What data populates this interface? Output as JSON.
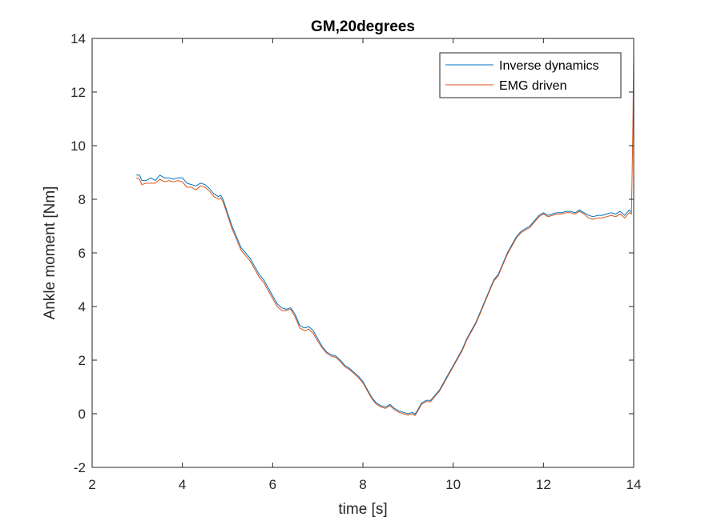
{
  "chart_data": {
    "type": "line",
    "title": "GM,20degrees",
    "xlabel": "time  [s]",
    "ylabel": "Ankle moment [Nm]",
    "xlim": [
      2,
      14
    ],
    "ylim": [
      -2,
      14
    ],
    "xticks": [
      2,
      4,
      6,
      8,
      10,
      12,
      14
    ],
    "yticks": [
      -2,
      0,
      2,
      4,
      6,
      8,
      10,
      12,
      14
    ],
    "grid": false,
    "legend_position": "top-right",
    "series": [
      {
        "name": "Inverse dynamics",
        "color": "#0072BD",
        "x": [
          2.98,
          3.05,
          3.1,
          3.2,
          3.3,
          3.4,
          3.5,
          3.6,
          3.7,
          3.8,
          3.9,
          4.0,
          4.1,
          4.2,
          4.3,
          4.4,
          4.5,
          4.6,
          4.7,
          4.8,
          4.85,
          4.9,
          5.0,
          5.1,
          5.2,
          5.3,
          5.4,
          5.5,
          5.6,
          5.7,
          5.8,
          5.9,
          6.0,
          6.1,
          6.2,
          6.3,
          6.4,
          6.5,
          6.6,
          6.7,
          6.8,
          6.9,
          7.0,
          7.1,
          7.2,
          7.3,
          7.4,
          7.5,
          7.6,
          7.7,
          7.8,
          7.9,
          8.0,
          8.1,
          8.2,
          8.3,
          8.4,
          8.5,
          8.6,
          8.7,
          8.8,
          8.9,
          9.0,
          9.1,
          9.15,
          9.2,
          9.3,
          9.4,
          9.5,
          9.6,
          9.7,
          9.8,
          9.9,
          10.0,
          10.1,
          10.2,
          10.3,
          10.4,
          10.5,
          10.6,
          10.7,
          10.8,
          10.9,
          11.0,
          11.1,
          11.2,
          11.3,
          11.4,
          11.5,
          11.6,
          11.7,
          11.8,
          11.9,
          12.0,
          12.1,
          12.2,
          12.3,
          12.4,
          12.5,
          12.6,
          12.7,
          12.8,
          12.9,
          13.0,
          13.1,
          13.2,
          13.3,
          13.4,
          13.5,
          13.6,
          13.7,
          13.8,
          13.9,
          13.95
        ],
        "y": [
          8.9,
          8.9,
          8.7,
          8.7,
          8.8,
          8.7,
          8.9,
          8.8,
          8.8,
          8.75,
          8.8,
          8.8,
          8.6,
          8.55,
          8.5,
          8.6,
          8.55,
          8.4,
          8.2,
          8.1,
          8.15,
          8.0,
          7.5,
          7.0,
          6.6,
          6.2,
          6.0,
          5.8,
          5.5,
          5.2,
          5.0,
          4.7,
          4.4,
          4.1,
          3.95,
          3.9,
          3.95,
          3.7,
          3.3,
          3.2,
          3.25,
          3.1,
          2.8,
          2.5,
          2.3,
          2.2,
          2.15,
          2.0,
          1.8,
          1.7,
          1.55,
          1.4,
          1.2,
          0.9,
          0.6,
          0.4,
          0.3,
          0.25,
          0.35,
          0.2,
          0.1,
          0.05,
          0.0,
          0.05,
          -0.02,
          0.1,
          0.4,
          0.5,
          0.5,
          0.7,
          0.9,
          1.2,
          1.5,
          1.8,
          2.1,
          2.4,
          2.8,
          3.1,
          3.4,
          3.8,
          4.2,
          4.6,
          5.0,
          5.2,
          5.6,
          6.0,
          6.3,
          6.6,
          6.8,
          6.9,
          7.0,
          7.2,
          7.4,
          7.5,
          7.4,
          7.45,
          7.5,
          7.5,
          7.55,
          7.55,
          7.5,
          7.6,
          7.5,
          7.4,
          7.35,
          7.4,
          7.4,
          7.45,
          7.5,
          7.45,
          7.55,
          7.4,
          7.6,
          7.5
        ]
      },
      {
        "name": "EMG driven",
        "color": "#D95319",
        "x": [
          2.98,
          3.05,
          3.1,
          3.2,
          3.3,
          3.4,
          3.5,
          3.6,
          3.7,
          3.8,
          3.9,
          4.0,
          4.1,
          4.2,
          4.3,
          4.4,
          4.5,
          4.6,
          4.7,
          4.8,
          4.85,
          4.9,
          5.0,
          5.1,
          5.2,
          5.3,
          5.4,
          5.5,
          5.6,
          5.7,
          5.8,
          5.9,
          6.0,
          6.1,
          6.2,
          6.3,
          6.4,
          6.5,
          6.6,
          6.7,
          6.8,
          6.9,
          7.0,
          7.1,
          7.2,
          7.3,
          7.4,
          7.5,
          7.6,
          7.7,
          7.8,
          7.9,
          8.0,
          8.1,
          8.2,
          8.3,
          8.4,
          8.5,
          8.6,
          8.7,
          8.8,
          8.9,
          9.0,
          9.1,
          9.15,
          9.2,
          9.3,
          9.4,
          9.5,
          9.6,
          9.7,
          9.8,
          9.9,
          10.0,
          10.1,
          10.2,
          10.3,
          10.4,
          10.5,
          10.6,
          10.7,
          10.8,
          10.9,
          11.0,
          11.1,
          11.2,
          11.3,
          11.4,
          11.5,
          11.6,
          11.7,
          11.8,
          11.9,
          12.0,
          12.1,
          12.2,
          12.3,
          12.4,
          12.5,
          12.6,
          12.7,
          12.8,
          12.9,
          13.0,
          13.1,
          13.2,
          13.3,
          13.4,
          13.5,
          13.6,
          13.7,
          13.8,
          13.9,
          13.95,
          13.98,
          14.0
        ],
        "y": [
          8.8,
          8.75,
          8.55,
          8.6,
          8.6,
          8.6,
          8.75,
          8.65,
          8.7,
          8.65,
          8.7,
          8.65,
          8.45,
          8.45,
          8.35,
          8.5,
          8.45,
          8.3,
          8.1,
          8.0,
          8.05,
          7.9,
          7.4,
          6.9,
          6.5,
          6.1,
          5.9,
          5.7,
          5.4,
          5.1,
          4.9,
          4.6,
          4.3,
          4.0,
          3.85,
          3.85,
          3.9,
          3.6,
          3.2,
          3.1,
          3.15,
          3.0,
          2.7,
          2.45,
          2.25,
          2.15,
          2.1,
          1.95,
          1.75,
          1.65,
          1.5,
          1.35,
          1.15,
          0.85,
          0.55,
          0.35,
          0.25,
          0.2,
          0.3,
          0.15,
          0.05,
          0.0,
          -0.05,
          0.0,
          -0.07,
          0.05,
          0.35,
          0.45,
          0.45,
          0.65,
          0.85,
          1.15,
          1.45,
          1.75,
          2.05,
          2.35,
          2.75,
          3.05,
          3.35,
          3.75,
          4.15,
          4.55,
          4.95,
          5.15,
          5.55,
          5.95,
          6.25,
          6.55,
          6.75,
          6.85,
          6.95,
          7.15,
          7.35,
          7.45,
          7.35,
          7.4,
          7.45,
          7.45,
          7.5,
          7.5,
          7.45,
          7.55,
          7.45,
          7.3,
          7.25,
          7.3,
          7.3,
          7.35,
          7.4,
          7.35,
          7.45,
          7.3,
          7.5,
          7.45,
          10.5,
          13.5
        ]
      }
    ]
  }
}
